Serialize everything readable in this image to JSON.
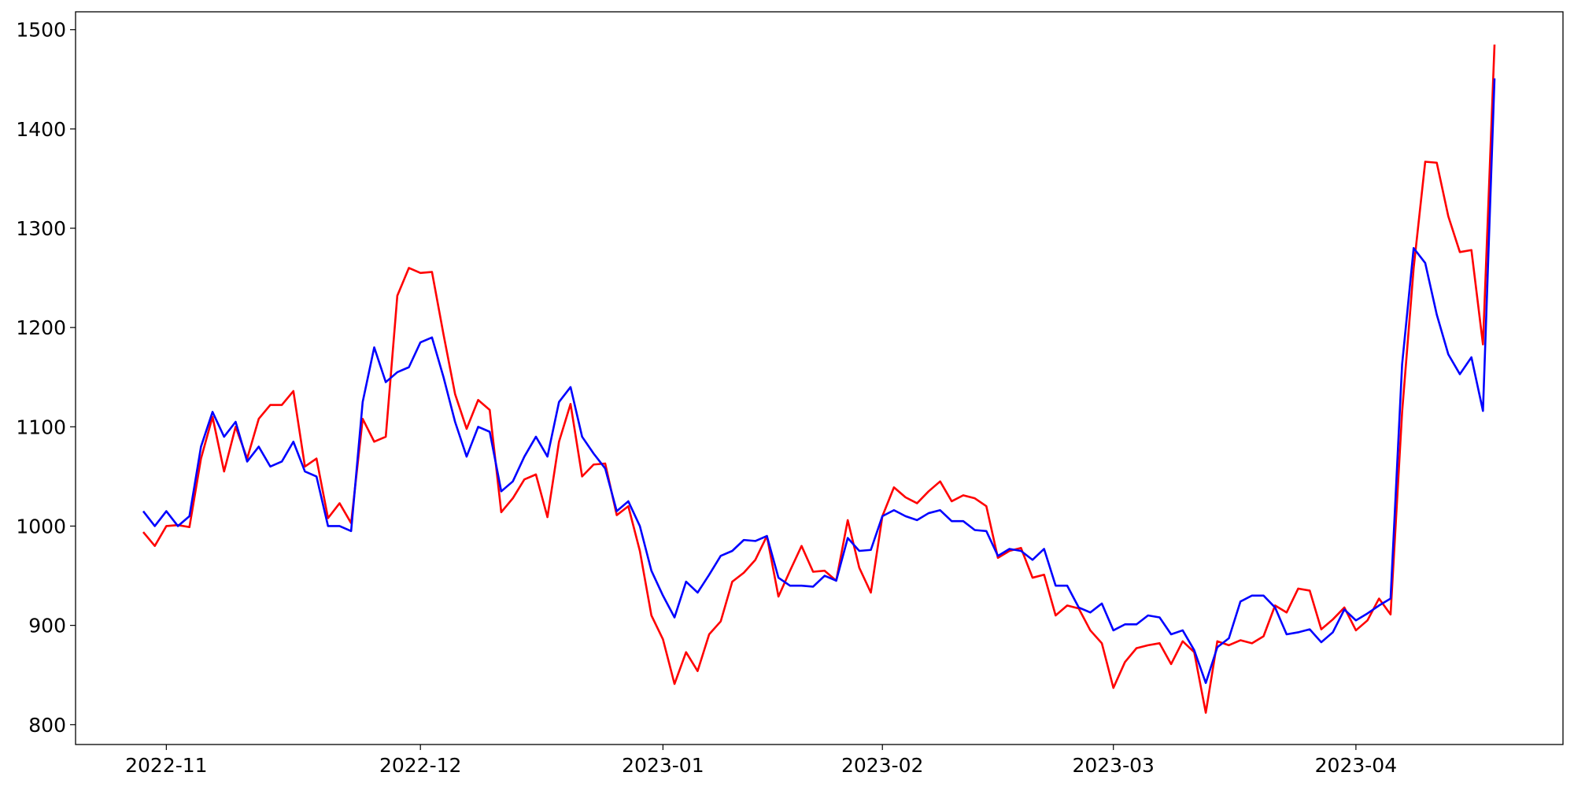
{
  "chart_data": {
    "type": "line",
    "x": [
      null,
      null,
      "2022-11",
      null,
      null,
      null,
      null,
      null,
      null,
      null,
      null,
      null,
      null,
      null,
      null,
      null,
      null,
      null,
      null,
      null,
      null,
      null,
      null,
      null,
      "2022-12",
      null,
      null,
      null,
      null,
      null,
      null,
      null,
      null,
      null,
      null,
      null,
      null,
      null,
      null,
      null,
      null,
      null,
      null,
      null,
      null,
      "2023-01",
      null,
      null,
      null,
      null,
      null,
      null,
      null,
      null,
      null,
      null,
      null,
      null,
      null,
      null,
      null,
      null,
      null,
      null,
      "2023-02",
      null,
      null,
      null,
      null,
      null,
      null,
      null,
      null,
      null,
      null,
      null,
      null,
      null,
      null,
      null,
      null,
      null,
      null,
      null,
      "2023-03",
      null,
      null,
      null,
      null,
      null,
      null,
      null,
      null,
      null,
      null,
      null,
      null,
      null,
      null,
      null,
      null,
      null,
      null,
      null,
      null,
      "2023-04",
      null,
      null,
      null,
      null,
      null,
      null,
      null,
      null,
      null,
      null,
      null,
      null
    ],
    "series": [
      {
        "color": "#ff0000",
        "values": [
          994,
          980,
          1000,
          1001,
          999,
          1068,
          1110,
          1055,
          1100,
          1068,
          1108,
          1122,
          1122,
          1136,
          1060,
          1068,
          1008,
          1023,
          1003,
          1108,
          1085,
          1090,
          1232,
          1260,
          1255,
          1256,
          1193,
          1133,
          1098,
          1127,
          1117,
          1014,
          1028,
          1047,
          1052,
          1009,
          1085,
          1123,
          1050,
          1062,
          1063,
          1011,
          1020,
          975,
          910,
          886,
          841,
          873,
          854,
          891,
          904,
          944,
          953,
          966,
          990,
          929,
          955,
          980,
          954,
          955,
          945,
          1006,
          958,
          933,
          1010,
          1039,
          1029,
          1023,
          1035,
          1045,
          1025,
          1031,
          1028,
          1020,
          968,
          975,
          978,
          948,
          951,
          910,
          920,
          917,
          895,
          882,
          837,
          863,
          877,
          880,
          882,
          861,
          884,
          873,
          812,
          884,
          880,
          885,
          882,
          889,
          920,
          913,
          937,
          935,
          896,
          906,
          918,
          895,
          905,
          927,
          911,
          1115,
          1260,
          1367,
          1366,
          1312,
          1276,
          1278,
          1183,
          1485
        ]
      },
      {
        "color": "#0000ff",
        "values": [
          1015,
          1000,
          1015,
          1000,
          1010,
          1080,
          1115,
          1090,
          1105,
          1065,
          1080,
          1060,
          1065,
          1085,
          1055,
          1050,
          1000,
          1000,
          995,
          1125,
          1180,
          1145,
          1155,
          1160,
          1185,
          1190,
          1150,
          1105,
          1070,
          1100,
          1095,
          1035,
          1045,
          1070,
          1090,
          1070,
          1125,
          1140,
          1090,
          1073,
          1058,
          1015,
          1025,
          1000,
          955,
          930,
          908,
          944,
          933,
          951,
          970,
          975,
          986,
          985,
          990,
          948,
          940,
          940,
          939,
          950,
          945,
          988,
          975,
          976,
          1010,
          1016,
          1010,
          1006,
          1013,
          1016,
          1005,
          1005,
          996,
          995,
          970,
          977,
          975,
          966,
          977,
          940,
          940,
          918,
          913,
          922,
          895,
          901,
          901,
          910,
          908,
          891,
          895,
          875,
          842,
          878,
          887,
          924,
          930,
          930,
          918,
          891,
          893,
          896,
          883,
          893,
          916,
          905,
          912,
          920,
          927,
          1163,
          1280,
          1265,
          1213,
          1173,
          1153,
          1170,
          1116,
          1451
        ]
      }
    ],
    "ylim": [
      780,
      1518
    ],
    "yticks": [
      800,
      900,
      1000,
      1100,
      1200,
      1300,
      1400,
      1500
    ],
    "grid": false
  }
}
